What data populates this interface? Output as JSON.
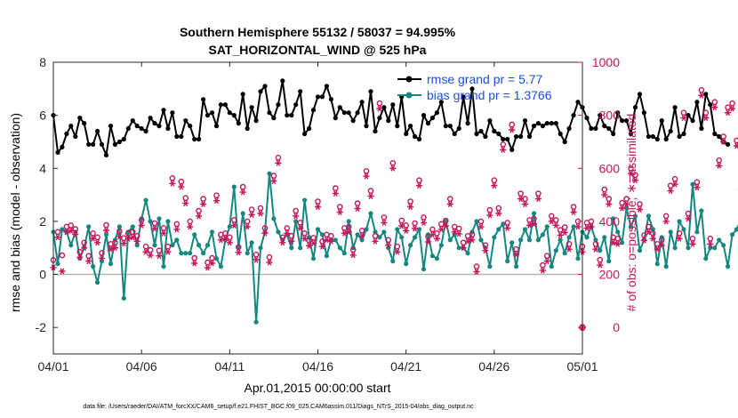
{
  "chart_data": {
    "type": "line",
    "title": [
      "Southern Hemisphere 55132 / 58037 = 94.995%",
      "SAT_HORIZONTAL_WIND @ 525 hPa"
    ],
    "xlabel": "Apr.01,2015 00:00:00 start",
    "ylabel_left": "rmse and bias (model - observation)",
    "ylabel_right": "# of obs: o=possible; ∗=assimilated",
    "x_tick_labels": [
      "04/01",
      "04/06",
      "04/11",
      "04/16",
      "04/21",
      "04/26",
      "05/01"
    ],
    "x_ticks": [
      0,
      5,
      10,
      15,
      20,
      25,
      30
    ],
    "xlim": [
      0,
      30
    ],
    "y_left_ticks": [
      "-2",
      "0",
      "2",
      "4",
      "6",
      "8"
    ],
    "y_left_tick_values": [
      -2,
      0,
      2,
      4,
      6,
      8
    ],
    "ylim_left": [
      -3,
      8
    ],
    "y_right_ticks": [
      "0",
      "200",
      "400",
      "600",
      "800",
      "1000"
    ],
    "y_right_tick_values": [
      0,
      200,
      400,
      600,
      800,
      1000
    ],
    "ylim_right": [
      -100,
      1000
    ],
    "grid": false,
    "legend": "top-right",
    "step_days": 0.25,
    "series": [
      {
        "name": "rmse grand pr = 5.77",
        "axis": "left",
        "color": "#000000",
        "values": [
          6.0,
          4.6,
          4.8,
          5.3,
          5.6,
          5.2,
          5.9,
          5.7,
          4.9,
          4.9,
          5.4,
          4.9,
          4.5,
          5.6,
          4.9,
          5.0,
          5.1,
          5.5,
          5.8,
          5.6,
          5.5,
          5.4,
          5.9,
          5.7,
          5.6,
          6.2,
          5.5,
          6.1,
          5.2,
          5.2,
          5.8,
          5.6,
          5.1,
          5.1,
          6.6,
          6.0,
          6.1,
          5.6,
          6.4,
          6.4,
          6.1,
          6.0,
          5.7,
          6.8,
          5.5,
          6.3,
          5.8,
          6.9,
          7.1,
          6.1,
          5.9,
          6.4,
          7.3,
          6.0,
          6.0,
          6.4,
          6.9,
          5.3,
          5.5,
          6.2,
          6.7,
          6.7,
          7.1,
          6.6,
          5.9,
          6.3,
          6.1,
          6.1,
          5.8,
          6.1,
          6.5,
          5.6,
          6.9,
          5.4,
          5.9,
          6.3,
          5.8,
          6.4,
          5.6,
          6.7,
          5.3,
          5.6,
          5.2,
          5.1,
          6.0,
          5.7,
          5.9,
          6.1,
          6.5,
          5.6,
          5.6,
          5.3,
          5.5,
          6.7,
          5.7,
          7.0,
          5.3,
          5.4,
          5.2,
          5.8,
          5.4,
          5.3,
          5.1,
          5.1,
          4.7,
          5.2,
          5.2,
          5.8,
          5.2,
          5.6,
          5.7,
          5.6,
          5.7,
          5.7,
          5.7,
          5.3,
          5.0,
          5.5,
          6.0,
          6.5,
          6.3,
          5.9,
          5.5,
          5.5,
          6.0,
          5.6,
          5.5,
          5.3,
          6.1,
          5.8,
          5.8,
          5.3,
          6.3,
          6.8,
          6.1,
          5.2,
          5.2,
          5.1,
          5.8,
          5.1,
          5.4,
          6.3,
          5.2,
          5.3,
          6.0,
          5.8,
          6.5,
          5.5,
          6.8,
          6.4,
          5.3,
          5.2,
          5.0,
          4.9
        ]
      },
      {
        "name": "bias grand pr = 1.3766",
        "axis": "left",
        "color": "#148880",
        "values": [
          1.6,
          0.4,
          1.7,
          1.6,
          1.1,
          1.6,
          0.6,
          1.0,
          1.8,
          0.3,
          -0.3,
          0.5,
          1.5,
          0.4,
          1.3,
          1.8,
          -0.9,
          1.6,
          1.8,
          1.1,
          2.1,
          2.8,
          2.0,
          1.1,
          2.1,
          0.3,
          2.0,
          1.1,
          1.3,
          0.8,
          0.8,
          0.8,
          1.5,
          1.1,
          0.8,
          1.1,
          1.6,
          0.6,
          0.3,
          1.3,
          1.8,
          3.3,
          1.0,
          2.3,
          0.8,
          1.2,
          -1.8,
          1.0,
          1.6,
          3.8,
          2.1,
          1.6,
          1.3,
          1.5,
          1.0,
          2.0,
          1.0,
          2.8,
          1.4,
          0.6,
          1.7,
          1.5,
          0.7,
          1.3,
          1.3,
          1.0,
          0.8,
          2.0,
          1.0,
          1.5,
          1.3,
          1.7,
          2.3,
          1.6,
          1.4,
          1.6,
          1.0,
          0.5,
          1.7,
          1.4,
          0.4,
          1.1,
          1.4,
          1.7,
          0.2,
          1.5,
          0.7,
          0.6,
          1.1,
          2.0,
          1.3,
          1.5,
          1.0,
          1.0,
          0.8,
          1.6,
          2.0,
          1.3,
          1.0,
          0.3,
          1.4,
          1.7,
          1.9,
          0.5,
          1.2,
          0.3,
          1.3,
          1.7,
          1.3,
          2.3,
          1.3,
          1.5,
          1.8,
          0.3,
          0.9,
          1.3,
          0.8,
          1.4,
          1.8,
          0.6,
          1.6,
          1.4,
          1.8,
          1.3,
          0.9,
          1.4,
          0.5,
          2.1,
          1.6,
          1.2,
          2.5,
          1.8,
          2.2,
          0.9,
          1.3,
          2.2,
          1.7,
          0.4,
          1.4,
          0.3,
          1.6,
          1.0,
          2.0,
          1.7,
          1.0,
          3.4,
          1.6,
          2.4,
          0.6,
          1.0,
          1.0,
          1.3,
          1.1,
          0.3,
          1.5,
          1.7,
          2.1,
          1.6
        ]
      },
      {
        "name": "possible",
        "axis": "right",
        "color": "#c8145a",
        "marker": "o",
        "values": [
          254,
          360,
          272,
          380,
          385,
          371,
          285,
          320,
          270,
          355,
          340,
          281,
          386,
          315,
          320,
          363,
          337,
          355,
          360,
          345,
          405,
          305,
          292,
          393,
          290,
          375,
          305,
          563,
          390,
          550,
          488,
          400,
          262,
          440,
          485,
          245,
          262,
          498,
          350,
          355,
          340,
          405,
          303,
          530,
          400,
          445,
          275,
          450,
          375,
          265,
          572,
          640,
          340,
          375,
          345,
          440,
          395,
          355,
          328,
          338,
          475,
          325,
          350,
          345,
          525,
          455,
          375,
          380,
          293,
          468,
          365,
          590,
          515,
          345,
          845,
          415,
          330,
          620,
          305,
          403,
          385,
          475,
          393,
          555,
          415,
          343,
          370,
          355,
          390,
          403,
          485,
          380,
          373,
          320,
          345,
          350,
          230,
          400,
          310,
          443,
          555,
          450,
          690,
          395,
          765,
          295,
          505,
          485,
          405,
          410,
          505,
          235,
          270,
          420,
          405,
          368,
          378,
          315,
          455,
          400,
          305,
          395,
          400,
          315,
          255,
          520,
          485,
          340,
          335,
          470,
          485,
          600,
          575,
          465,
          348,
          380,
          355,
          315,
          330,
          420,
          535,
          560,
          355,
          810,
          430,
          335,
          548,
          895,
          810,
          335,
          850,
          630,
          720,
          830,
          845,
          705,
          540,
          785,
          785,
          580
        ]
      },
      {
        "name": "assimilated",
        "axis": "right",
        "color": "#c8145a",
        "marker": "*",
        "values": [
          226,
          340,
          212,
          360,
          365,
          351,
          265,
          300,
          250,
          335,
          320,
          261,
          366,
          295,
          300,
          343,
          317,
          335,
          340,
          325,
          385,
          285,
          272,
          373,
          270,
          355,
          285,
          543,
          370,
          530,
          468,
          380,
          242,
          420,
          465,
          225,
          242,
          478,
          330,
          335,
          320,
          385,
          283,
          510,
          380,
          425,
          255,
          430,
          355,
          245,
          552,
          620,
          320,
          355,
          325,
          420,
          375,
          335,
          308,
          318,
          455,
          305,
          330,
          325,
          505,
          435,
          355,
          360,
          273,
          448,
          345,
          570,
          495,
          325,
          825,
          395,
          310,
          600,
          285,
          383,
          365,
          455,
          373,
          535,
          395,
          323,
          350,
          335,
          370,
          383,
          465,
          360,
          353,
          300,
          325,
          330,
          210,
          380,
          290,
          423,
          535,
          430,
          670,
          375,
          745,
          275,
          485,
          465,
          385,
          390,
          485,
          215,
          250,
          400,
          385,
          348,
          358,
          295,
          435,
          380,
          285,
          375,
          380,
          295,
          235,
          500,
          465,
          320,
          315,
          450,
          465,
          580,
          555,
          445,
          328,
          360,
          335,
          295,
          310,
          400,
          515,
          540,
          335,
          790,
          410,
          315,
          528,
          875,
          790,
          315,
          830,
          610,
          700,
          810,
          825,
          685,
          520,
          765,
          765,
          560
        ]
      }
    ],
    "annotations": [
      "0"
    ],
    "footnote": "data file: /Users/raeder/DAI/ATM_forcXX/CAM6_setup/f.e21.FHIST_BGC.f09_025.CAM6assim.011/Diags_NTrS_2015-04/obs_diag_output.nc"
  }
}
